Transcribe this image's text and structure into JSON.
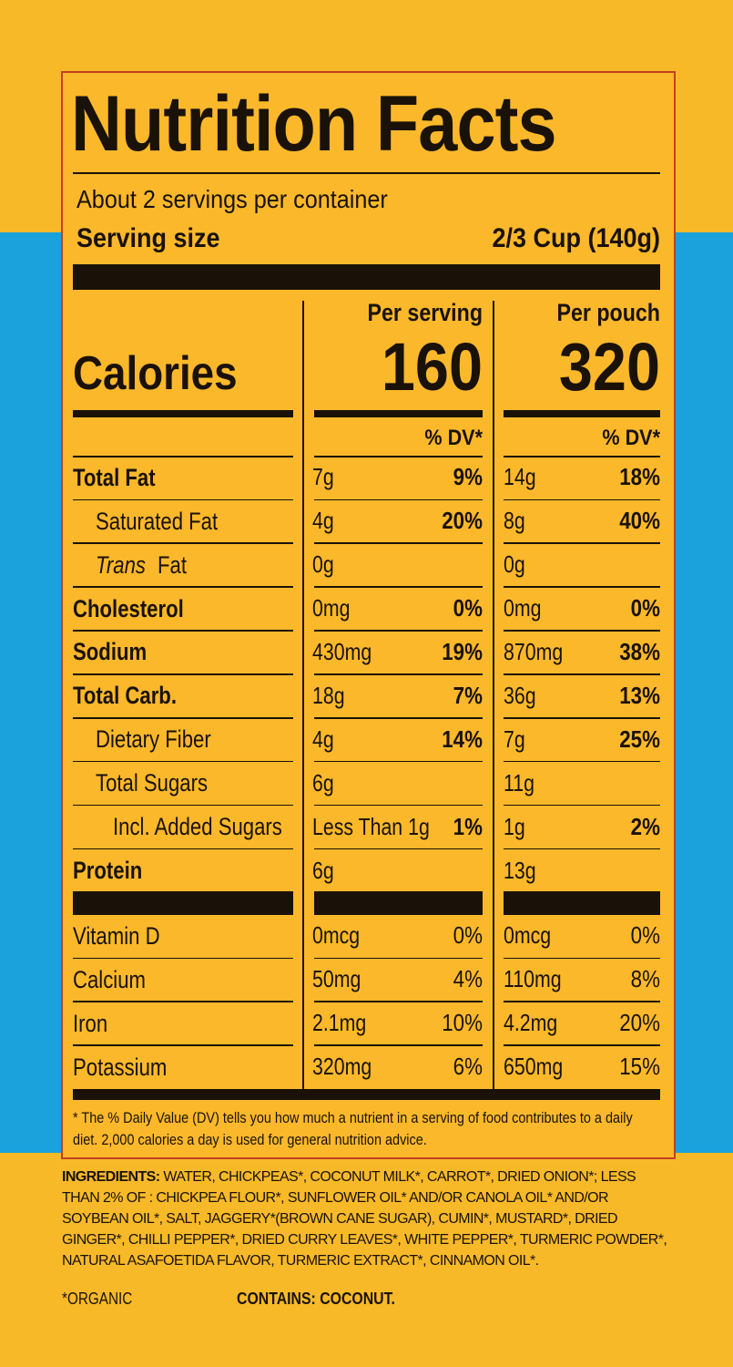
{
  "header": {
    "title": "Nutrition Facts",
    "servings": "About 2 servings per container",
    "serving_size_label": "Serving size",
    "serving_size_value": "2/3 Cup (140g)"
  },
  "calories": {
    "label": "Calories",
    "columns": [
      {
        "heading": "Per serving",
        "value": "160",
        "dv_heading": "% DV*"
      },
      {
        "heading": "Per pouch",
        "value": "320",
        "dv_heading": "% DV*"
      }
    ]
  },
  "nutrients": [
    {
      "name": "Total Fat",
      "bold": true,
      "indent": 0,
      "per_serving": [
        "7g",
        "9%"
      ],
      "per_pouch": [
        "14g",
        "18%"
      ]
    },
    {
      "name": "Saturated Fat",
      "bold": false,
      "indent": 1,
      "per_serving": [
        "4g",
        "20%"
      ],
      "per_pouch": [
        "8g",
        "40%"
      ]
    },
    {
      "name_italic": "Trans",
      "name": "Fat",
      "bold": false,
      "indent": 1,
      "per_serving": [
        "0g",
        null
      ],
      "per_pouch": [
        "0g",
        null
      ]
    },
    {
      "name": "Cholesterol",
      "bold": true,
      "indent": 0,
      "per_serving": [
        "0mg",
        "0%"
      ],
      "per_pouch": [
        "0mg",
        "0%"
      ]
    },
    {
      "name": "Sodium",
      "bold": true,
      "indent": 0,
      "per_serving": [
        "430mg",
        "19%"
      ],
      "per_pouch": [
        "870mg",
        "38%"
      ]
    },
    {
      "name": "Total Carb.",
      "bold": true,
      "indent": 0,
      "per_serving": [
        "18g",
        "7%"
      ],
      "per_pouch": [
        "36g",
        "13%"
      ]
    },
    {
      "name": "Dietary Fiber",
      "bold": false,
      "indent": 1,
      "per_serving": [
        "4g",
        "14%"
      ],
      "per_pouch": [
        "7g",
        "25%"
      ]
    },
    {
      "name": "Total Sugars",
      "bold": false,
      "indent": 1,
      "per_serving": [
        "6g",
        null
      ],
      "per_pouch": [
        "11g",
        null
      ]
    },
    {
      "name": "Incl. Added Sugars",
      "bold": false,
      "indent": 2,
      "per_serving": [
        "Less Than 1g",
        "1%"
      ],
      "per_pouch": [
        "1g",
        "2%"
      ]
    },
    {
      "name": "Protein",
      "bold": true,
      "indent": 0,
      "per_serving": [
        "6g",
        null
      ],
      "per_pouch": [
        "13g",
        null
      ]
    }
  ],
  "vitamins": [
    {
      "name": "Vitamin D",
      "per_serving": [
        "0mcg",
        "0%"
      ],
      "per_pouch": [
        "0mcg",
        "0%"
      ]
    },
    {
      "name": "Calcium",
      "per_serving": [
        "50mg",
        "4%"
      ],
      "per_pouch": [
        "110mg",
        "8%"
      ]
    },
    {
      "name": "Iron",
      "per_serving": [
        "2.1mg",
        "10%"
      ],
      "per_pouch": [
        "4.2mg",
        "20%"
      ]
    },
    {
      "name": "Potassium",
      "per_serving": [
        "320mg",
        "6%"
      ],
      "per_pouch": [
        "650mg",
        "15%"
      ]
    }
  ],
  "footnote": "* The % Daily Value (DV) tells you how much a nutrient in a serving of food contributes to a daily diet. 2,000 calories a day is used for general nutrition advice.",
  "ingredients": {
    "label": "INGREDIENTS:",
    "text": "WATER, CHICKPEAS*, COCONUT MILK*, CARROT*, DRIED ONION*; LESS THAN 2% OF : CHICKPEA FLOUR*, SUNFLOWER OIL* AND/OR CANOLA OIL* AND/OR SOYBEAN OIL*, SALT, JAGGERY*(BROWN CANE SUGAR), CUMIN*, MUSTARD*, DRIED GINGER*, CHILLI PEPPER*, DRIED CURRY LEAVES*, WHITE PEPPER*, TURMERIC POWDER*, NATURAL ASAFOETIDA FLAVOR, TURMERIC EXTRACT*, CINNAMON OIL*."
  },
  "organic_note": "*ORGANIC",
  "allergens": "CONTAINS: COCONUT."
}
